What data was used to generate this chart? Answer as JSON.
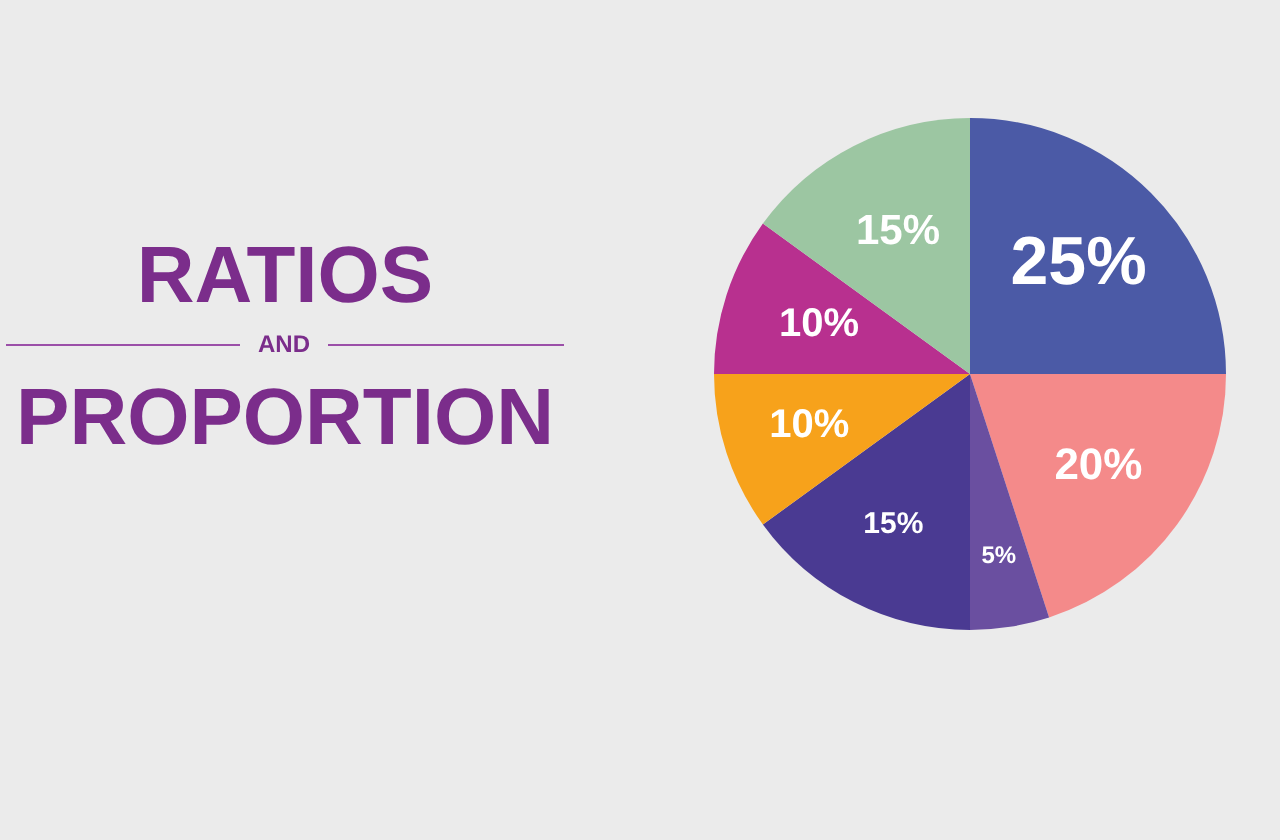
{
  "chart_data": {
    "type": "pie",
    "title": "RATIOS AND PROPORTION",
    "categories": [
      null,
      null,
      null,
      null,
      null,
      null,
      null
    ],
    "values": [
      25,
      20,
      5,
      15,
      10,
      10,
      15
    ],
    "value_labels": [
      "25%",
      "20%",
      "5%",
      "15%",
      "10%",
      "10%",
      "15%"
    ],
    "colors": [
      "#4b5aa6",
      "#f48a8a",
      "#6a4fa0",
      "#4a3a92",
      "#f7a21b",
      "#b8308f",
      "#9cc6a2"
    ]
  }
}
